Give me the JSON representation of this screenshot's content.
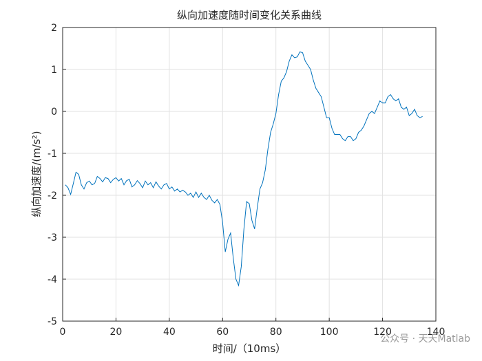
{
  "chart_data": {
    "type": "line",
    "title": "纵向加速度随时间变化关系曲线",
    "x_label": "时间/（10ms）",
    "y_label": "纵向加速度/(m/s²)",
    "watermark": "公众号 · 天天Matlab",
    "x": [
      1,
      2,
      3,
      4,
      5,
      6,
      7,
      8,
      9,
      10,
      11,
      12,
      13,
      14,
      15,
      16,
      17,
      18,
      19,
      20,
      21,
      22,
      23,
      24,
      25,
      26,
      27,
      28,
      29,
      30,
      31,
      32,
      33,
      34,
      35,
      36,
      37,
      38,
      39,
      40,
      41,
      42,
      43,
      44,
      45,
      46,
      47,
      48,
      49,
      50,
      51,
      52,
      53,
      54,
      55,
      56,
      57,
      58,
      59,
      60,
      61,
      62,
      63,
      64,
      65,
      66,
      67,
      68,
      69,
      70,
      71,
      72,
      73,
      74,
      75,
      76,
      77,
      78,
      79,
      80,
      81,
      82,
      83,
      84,
      85,
      86,
      87,
      88,
      89,
      90,
      91,
      92,
      93,
      94,
      95,
      96,
      97,
      98,
      99,
      100,
      101,
      102,
      103,
      104,
      105,
      106,
      107,
      108,
      109,
      110,
      111,
      112,
      113,
      114,
      115,
      116,
      117,
      118,
      119,
      120,
      121,
      122,
      123,
      124,
      125,
      126,
      127,
      128,
      129,
      130,
      131,
      132,
      133,
      134,
      135
    ],
    "series": [
      {
        "color": "#0072BD",
        "values": [
          -1.75,
          -1.82,
          -1.98,
          -1.72,
          -1.45,
          -1.5,
          -1.75,
          -1.85,
          -1.7,
          -1.66,
          -1.75,
          -1.72,
          -1.55,
          -1.6,
          -1.68,
          -1.58,
          -1.6,
          -1.7,
          -1.62,
          -1.58,
          -1.66,
          -1.6,
          -1.75,
          -1.65,
          -1.62,
          -1.8,
          -1.75,
          -1.65,
          -1.72,
          -1.82,
          -1.66,
          -1.75,
          -1.7,
          -1.82,
          -1.68,
          -1.78,
          -1.85,
          -1.75,
          -1.72,
          -1.85,
          -1.8,
          -1.9,
          -1.85,
          -1.92,
          -1.88,
          -1.92,
          -2.0,
          -1.95,
          -2.05,
          -1.92,
          -2.05,
          -1.95,
          -2.05,
          -2.1,
          -2.0,
          -2.12,
          -2.18,
          -2.1,
          -2.22,
          -2.65,
          -3.35,
          -3.05,
          -2.9,
          -3.5,
          -4.0,
          -4.15,
          -3.7,
          -2.8,
          -2.15,
          -2.2,
          -2.6,
          -2.8,
          -2.3,
          -1.85,
          -1.7,
          -1.4,
          -0.9,
          -0.5,
          -0.3,
          -0.05,
          0.4,
          0.72,
          0.8,
          0.95,
          1.2,
          1.35,
          1.28,
          1.3,
          1.42,
          1.4,
          1.2,
          1.1,
          1.0,
          0.75,
          0.55,
          0.45,
          0.35,
          0.1,
          -0.15,
          -0.15,
          -0.4,
          -0.55,
          -0.55,
          -0.55,
          -0.65,
          -0.7,
          -0.6,
          -0.6,
          -0.7,
          -0.65,
          -0.5,
          -0.45,
          -0.35,
          -0.2,
          -0.05,
          0,
          -0.05,
          0.1,
          0.25,
          0.2,
          0.2,
          0.35,
          0.4,
          0.3,
          0.25,
          0.3,
          0.1,
          0.05,
          0.1,
          -0.1,
          -0.05,
          0.05,
          -0.1,
          -0.15,
          -0.12
        ]
      }
    ],
    "xlim": [
      0,
      140
    ],
    "xticks": [
      0,
      20,
      40,
      60,
      80,
      100,
      120,
      140
    ],
    "ylim": [
      -5,
      2
    ],
    "yticks": [
      -5,
      -4,
      -3,
      -2,
      -1,
      0,
      1,
      2
    ],
    "grid": true
  }
}
